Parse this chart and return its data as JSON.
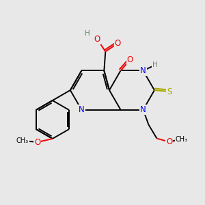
{
  "bg_color": "#e8e8e8",
  "atom_colors": {
    "C": "#000000",
    "N": "#0000ee",
    "O": "#ee0000",
    "S": "#aaaa00",
    "H": "#6a8a6a"
  },
  "fig_size": [
    3.0,
    3.0
  ],
  "dpi": 100,
  "bond_lw": 1.4,
  "font_size": 8.5
}
